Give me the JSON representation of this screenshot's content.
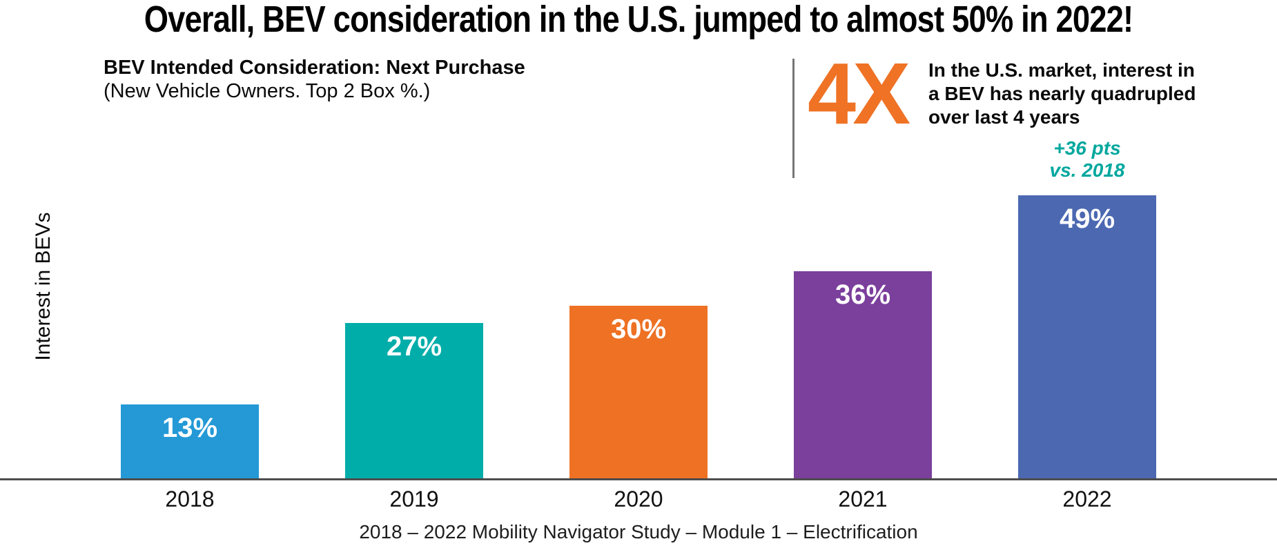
{
  "title": "Overall, BEV consideration in the U.S. jumped to almost 50% in 2022!",
  "subtitle": {
    "line1": "BEV Intended Consideration: Next Purchase",
    "line2": "(New Vehicle Owners. Top 2 Box %.)"
  },
  "callout": {
    "multiplier": "4X",
    "text": "In the U.S. market, interest in\na BEV has nearly quadrupled\nover last 4 years",
    "accent_color": "#EF7225"
  },
  "delta_note": {
    "text": "+36 pts\nvs. 2018",
    "color": "#00A79E"
  },
  "footer": "2018 – 2022 Mobility Navigator Study – Module 1 – Electrification",
  "chart_data": {
    "type": "bar",
    "title": "BEV Intended Consideration: Next Purchase (New Vehicle Owners. Top 2 Box %.)",
    "categories": [
      "2018",
      "2019",
      "2020",
      "2021",
      "2022"
    ],
    "values": [
      13,
      27,
      30,
      36,
      49
    ],
    "value_labels": [
      "13%",
      "27%",
      "30%",
      "36%",
      "49%"
    ],
    "bar_colors": [
      "#2499D6",
      "#00ADA9",
      "#EE7124",
      "#7B3F9C",
      "#4B68B1"
    ],
    "value_label_color": "#FFFFFF",
    "xlabel": "",
    "ylabel": "Interest in BEVs",
    "ylim": [
      0,
      55
    ],
    "grid": false,
    "legend": false,
    "axis_line_color": "#4D4D4D"
  }
}
